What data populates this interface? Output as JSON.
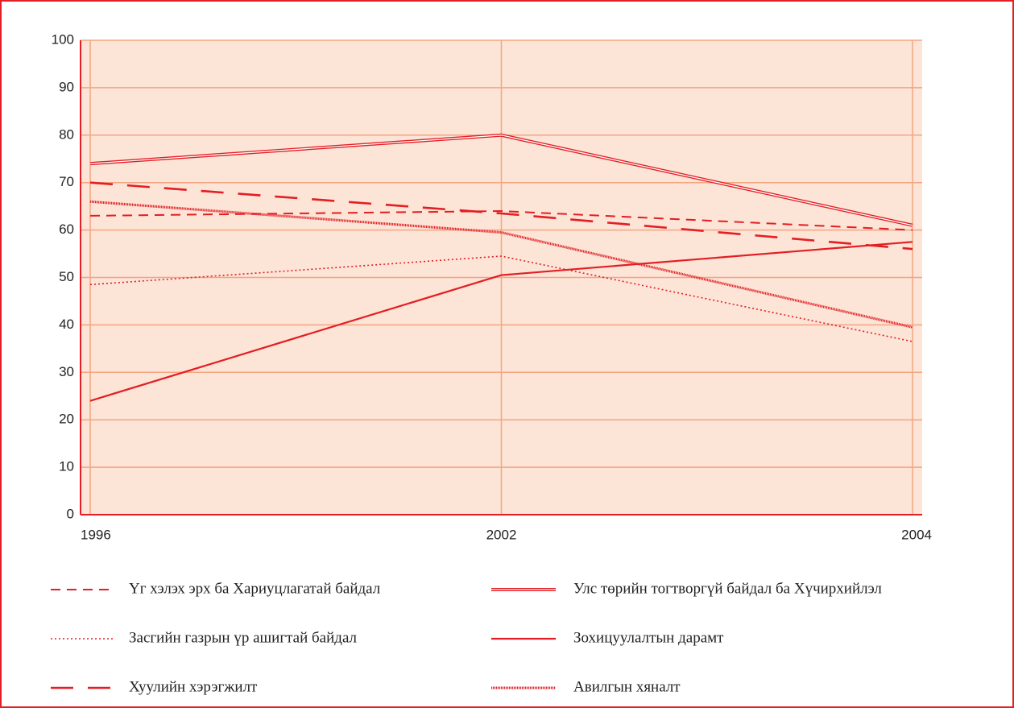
{
  "chart_data": {
    "type": "line",
    "categories": [
      "1996",
      "2002",
      "2004"
    ],
    "ylim": [
      0,
      100
    ],
    "yticks": [
      0,
      10,
      20,
      30,
      40,
      50,
      60,
      70,
      80,
      90,
      100
    ],
    "grid": true,
    "series": [
      {
        "name": "Үг хэлэх эрх ба Хариуцлагатай байдал",
        "color": "#e31e24",
        "style": "dashed",
        "values": [
          63,
          64,
          60
        ]
      },
      {
        "name": "Улс төрийн тогтворгүй байдал ба Хүчирхийлэл",
        "color": "#e31e24",
        "style": "double",
        "values": [
          74,
          80,
          61
        ]
      },
      {
        "name": "Засгийн газрын үр ашигтай байдал",
        "color": "#e31e24",
        "style": "dotted",
        "values": [
          48.5,
          54.5,
          36.5
        ]
      },
      {
        "name": "Зохицуулалтын дарамт",
        "color": "#e31e24",
        "style": "solid",
        "values": [
          24,
          50.5,
          57.5
        ]
      },
      {
        "name": "Хуулийн хэрэгжилт",
        "color": "#e31e24",
        "style": "longdash",
        "values": [
          70,
          63.5,
          56
        ]
      },
      {
        "name": "Авилгын хяналт",
        "color": "#e31e24",
        "style": "textured",
        "values": [
          66,
          59.5,
          39.5
        ]
      }
    ]
  }
}
